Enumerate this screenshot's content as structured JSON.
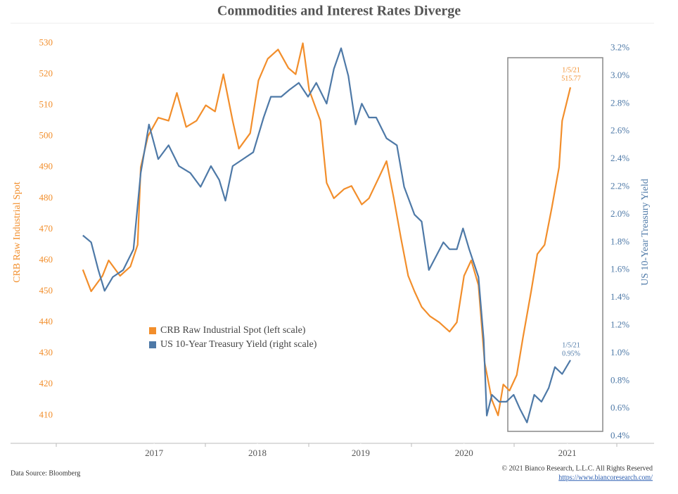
{
  "chart_data": {
    "type": "line",
    "title": "Commodities and Interest Rates Diverge",
    "y_label": "CRB Raw Industrial Spot",
    "y2_label": "US 10-Year Treasury Yield",
    "xlim": [
      2015.61,
      2021.84
    ],
    "xticks": [
      2017,
      2018,
      2019,
      2020,
      2021
    ],
    "ylim": [
      401,
      536
    ],
    "yticks": [
      410,
      420,
      430,
      440,
      450,
      460,
      470,
      480,
      490,
      500,
      510,
      520,
      530
    ],
    "y2lim": [
      0.35,
      3.37
    ],
    "y2ticks": [
      {
        "value": 0.4,
        "label": "0.4%"
      },
      {
        "value": 0.6,
        "label": "0.6%"
      },
      {
        "value": 0.8,
        "label": "0.8%"
      },
      {
        "value": 1.0,
        "label": "1.0%"
      },
      {
        "value": 1.2,
        "label": "1.2%"
      },
      {
        "value": 1.4,
        "label": "1.4%"
      },
      {
        "value": 1.6,
        "label": "1.6%"
      },
      {
        "value": 1.8,
        "label": "1.8%"
      },
      {
        "value": 2.0,
        "label": "2.0%"
      },
      {
        "value": 2.2,
        "label": "2.2%"
      },
      {
        "value": 2.4,
        "label": "2.4%"
      },
      {
        "value": 2.6,
        "label": "2.6%"
      },
      {
        "value": 2.8,
        "label": "2.8%"
      },
      {
        "value": 3.0,
        "label": "3.0%"
      },
      {
        "value": 3.2,
        "label": "3.2%"
      }
    ],
    "legend": "center-left",
    "series": [
      {
        "name": "CRB Raw Industrial Spot (left scale)",
        "color": "#f28e2b",
        "axis": "y",
        "x": [
          2016.31,
          2016.39,
          2016.5,
          2016.56,
          2016.67,
          2016.77,
          2016.84,
          2016.87,
          2016.94,
          2017.04,
          2017.14,
          2017.22,
          2017.31,
          2017.41,
          2017.5,
          2017.59,
          2017.67,
          2017.76,
          2017.82,
          2017.93,
          2018.01,
          2018.1,
          2018.2,
          2018.3,
          2018.37,
          2018.44,
          2018.5,
          2018.61,
          2018.67,
          2018.74,
          2018.84,
          2018.91,
          2019.01,
          2019.08,
          2019.18,
          2019.25,
          2019.32,
          2019.39,
          2019.46,
          2019.52,
          2019.59,
          2019.67,
          2019.76,
          2019.86,
          2019.93,
          2020.0,
          2020.07,
          2020.14,
          2020.2,
          2020.27,
          2020.33,
          2020.38,
          2020.44,
          2020.51,
          2020.57,
          2020.65,
          2020.71,
          2020.78,
          2020.85,
          2020.92,
          2020.95,
          2021.03
        ],
        "values": [
          457,
          450,
          455,
          460,
          455,
          458,
          465,
          490,
          500,
          506,
          505,
          514,
          503,
          505,
          510,
          508,
          520,
          505,
          496,
          501,
          518,
          525,
          528,
          522,
          520,
          530,
          515,
          505,
          485,
          480,
          483,
          484,
          478,
          480,
          487,
          492,
          480,
          467,
          455,
          450,
          445,
          442,
          440,
          437,
          440,
          455,
          460,
          452,
          427,
          415,
          410,
          420,
          418,
          423,
          435,
          450,
          462,
          465,
          477,
          490,
          505,
          515.77
        ]
      },
      {
        "name": "US 10-Year Treasury Yield (right scale)",
        "color": "#4e79a7",
        "axis": "y2",
        "x": [
          2016.31,
          2016.39,
          2016.46,
          2016.52,
          2016.6,
          2016.7,
          2016.8,
          2016.87,
          2016.95,
          2017.04,
          2017.14,
          2017.24,
          2017.35,
          2017.45,
          2017.55,
          2017.63,
          2017.69,
          2017.76,
          2017.86,
          2017.96,
          2018.06,
          2018.13,
          2018.23,
          2018.31,
          2018.4,
          2018.49,
          2018.57,
          2018.67,
          2018.74,
          2018.81,
          2018.88,
          2018.95,
          2019.01,
          2019.08,
          2019.15,
          2019.25,
          2019.35,
          2019.42,
          2019.52,
          2019.59,
          2019.66,
          2019.73,
          2019.8,
          2019.86,
          2019.93,
          2019.99,
          2020.05,
          2020.14,
          2020.19,
          2020.22,
          2020.27,
          2020.34,
          2020.41,
          2020.48,
          2020.54,
          2020.61,
          2020.68,
          2020.75,
          2020.82,
          2020.88,
          2020.95,
          2021.03
        ],
        "values": [
          1.85,
          1.8,
          1.6,
          1.45,
          1.55,
          1.6,
          1.75,
          2.3,
          2.65,
          2.4,
          2.5,
          2.35,
          2.3,
          2.2,
          2.35,
          2.25,
          2.1,
          2.35,
          2.4,
          2.45,
          2.7,
          2.85,
          2.85,
          2.9,
          2.95,
          2.85,
          2.95,
          2.8,
          3.05,
          3.2,
          3.0,
          2.65,
          2.8,
          2.7,
          2.7,
          2.55,
          2.5,
          2.2,
          2.0,
          1.95,
          1.6,
          1.7,
          1.8,
          1.75,
          1.75,
          1.9,
          1.75,
          1.55,
          1.1,
          0.55,
          0.7,
          0.65,
          0.65,
          0.7,
          0.6,
          0.5,
          0.7,
          0.65,
          0.75,
          0.9,
          0.85,
          0.95
        ]
      }
    ],
    "annotations": [
      "1/5/21",
      "515.77",
      "1/5/21",
      "0.95%"
    ],
    "source": "Data Source: Bloomberg",
    "copyright": "© 2021 Bianco Research, L.L.C. All Rights Reserved",
    "url": "https://www.biancoresearch.com/"
  }
}
